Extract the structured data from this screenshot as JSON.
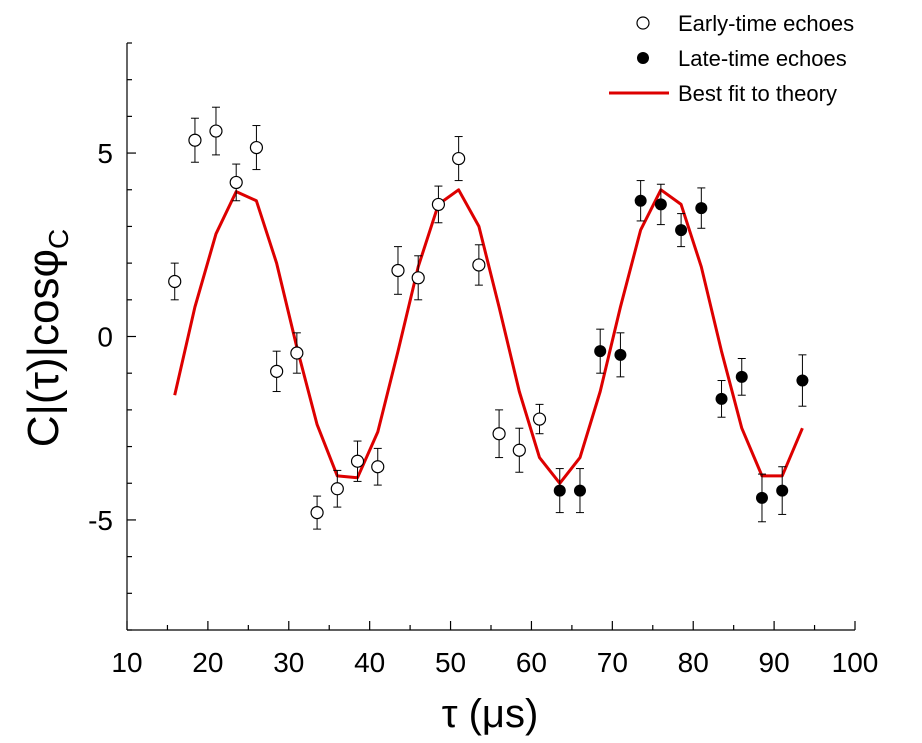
{
  "chart_data": {
    "type": "scatter",
    "title": "",
    "xlabel": "τ (μs)",
    "ylabel_main": "C|(τ)|cosφ",
    "ylabel_sub": "C",
    "xlim": [
      10,
      100
    ],
    "ylim": [
      -8,
      8
    ],
    "xticks": [
      "10",
      "20",
      "30",
      "40",
      "50",
      "60",
      "70",
      "80",
      "90",
      "100"
    ],
    "yticks": [
      "5",
      "0",
      "-5"
    ],
    "grid": false,
    "legend_position": "top-right",
    "series": [
      {
        "name": "Early-time echoes",
        "kind": "open-circle",
        "points": [
          {
            "x": 15.9,
            "y": 1.5,
            "err": 0.5
          },
          {
            "x": 18.4,
            "y": 5.35,
            "err": 0.6
          },
          {
            "x": 21.0,
            "y": 5.6,
            "err": 0.65
          },
          {
            "x": 23.5,
            "y": 4.2,
            "err": 0.5
          },
          {
            "x": 26.0,
            "y": 5.15,
            "err": 0.6
          },
          {
            "x": 28.5,
            "y": -0.95,
            "err": 0.55
          },
          {
            "x": 31.0,
            "y": -0.45,
            "err": 0.55
          },
          {
            "x": 33.5,
            "y": -4.8,
            "err": 0.45
          },
          {
            "x": 36.0,
            "y": -4.15,
            "err": 0.5
          },
          {
            "x": 38.5,
            "y": -3.4,
            "err": 0.55
          },
          {
            "x": 41.0,
            "y": -3.55,
            "err": 0.5
          },
          {
            "x": 43.5,
            "y": 1.8,
            "err": 0.65
          },
          {
            "x": 46.0,
            "y": 1.6,
            "err": 0.6
          },
          {
            "x": 48.5,
            "y": 3.6,
            "err": 0.5
          },
          {
            "x": 51.0,
            "y": 4.85,
            "err": 0.6
          },
          {
            "x": 53.5,
            "y": 1.95,
            "err": 0.55
          },
          {
            "x": 56.0,
            "y": -2.65,
            "err": 0.65
          },
          {
            "x": 58.5,
            "y": -3.1,
            "err": 0.6
          },
          {
            "x": 61.0,
            "y": -2.25,
            "err": 0.4
          }
        ]
      },
      {
        "name": "Late-time echoes",
        "kind": "filled-circle",
        "points": [
          {
            "x": 63.5,
            "y": -4.2,
            "err": 0.6
          },
          {
            "x": 66.0,
            "y": -4.2,
            "err": 0.6
          },
          {
            "x": 68.5,
            "y": -0.4,
            "err": 0.6
          },
          {
            "x": 71.0,
            "y": -0.5,
            "err": 0.6
          },
          {
            "x": 73.5,
            "y": 3.7,
            "err": 0.55
          },
          {
            "x": 76.0,
            "y": 3.6,
            "err": 0.55
          },
          {
            "x": 78.5,
            "y": 2.9,
            "err": 0.45
          },
          {
            "x": 81.0,
            "y": 3.5,
            "err": 0.55
          },
          {
            "x": 83.5,
            "y": -1.7,
            "err": 0.5
          },
          {
            "x": 86.0,
            "y": -1.1,
            "err": 0.5
          },
          {
            "x": 88.5,
            "y": -4.4,
            "err": 0.65
          },
          {
            "x": 91.0,
            "y": -4.2,
            "err": 0.65
          },
          {
            "x": 93.5,
            "y": -1.2,
            "err": 0.7
          }
        ]
      },
      {
        "name": "Best fit to theory",
        "kind": "line",
        "color": "#dd0000",
        "points": [
          {
            "x": 15.9,
            "y": -1.6
          },
          {
            "x": 18.4,
            "y": 0.8
          },
          {
            "x": 21.0,
            "y": 2.8
          },
          {
            "x": 23.5,
            "y": 3.95
          },
          {
            "x": 26.0,
            "y": 3.7
          },
          {
            "x": 28.5,
            "y": 2.0
          },
          {
            "x": 31.0,
            "y": -0.3
          },
          {
            "x": 33.5,
            "y": -2.4
          },
          {
            "x": 36.0,
            "y": -3.8
          },
          {
            "x": 38.5,
            "y": -3.85
          },
          {
            "x": 41.0,
            "y": -2.6
          },
          {
            "x": 43.5,
            "y": -0.4
          },
          {
            "x": 46.0,
            "y": 1.9
          },
          {
            "x": 48.5,
            "y": 3.6
          },
          {
            "x": 51.0,
            "y": 4.0
          },
          {
            "x": 53.5,
            "y": 3.0
          },
          {
            "x": 56.0,
            "y": 0.8
          },
          {
            "x": 58.5,
            "y": -1.5
          },
          {
            "x": 61.0,
            "y": -3.3
          },
          {
            "x": 63.5,
            "y": -4.0
          },
          {
            "x": 66.0,
            "y": -3.3
          },
          {
            "x": 68.5,
            "y": -1.5
          },
          {
            "x": 71.0,
            "y": 0.8
          },
          {
            "x": 73.5,
            "y": 2.9
          },
          {
            "x": 76.0,
            "y": 4.0
          },
          {
            "x": 78.5,
            "y": 3.6
          },
          {
            "x": 81.0,
            "y": 1.9
          },
          {
            "x": 83.5,
            "y": -0.4
          },
          {
            "x": 86.0,
            "y": -2.5
          },
          {
            "x": 88.5,
            "y": -3.8
          },
          {
            "x": 91.0,
            "y": -3.8
          },
          {
            "x": 93.5,
            "y": -2.5
          }
        ]
      }
    ]
  }
}
